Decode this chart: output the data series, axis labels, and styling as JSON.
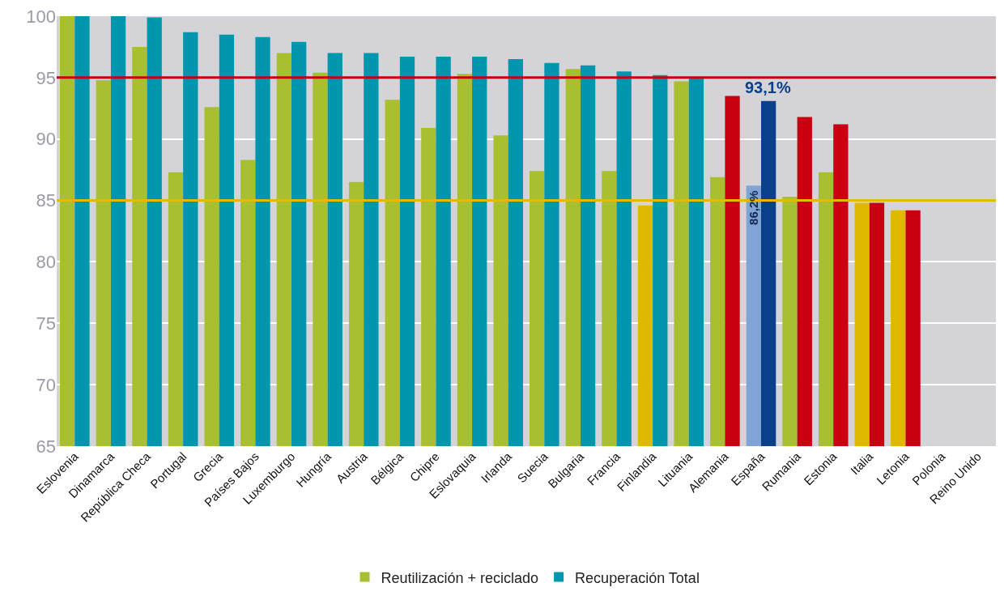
{
  "chart_data": {
    "type": "bar",
    "categories": [
      "Eslovenia",
      "Dinamarca",
      "República Checa",
      "Portugal",
      "Grecia",
      "Países Bajos",
      "Luxemburgo",
      "Hungría",
      "Austria",
      "Bélgica",
      "Chipre",
      "Eslovaquia",
      "Irlanda",
      "Suecia",
      "Bulgaria",
      "Francia",
      "Finlandia",
      "Lituania",
      "Alemania",
      "España",
      "Rumania",
      "Estonia",
      "Italia",
      "Letonia",
      "Polonia",
      "Reino Unido"
    ],
    "series": [
      {
        "name": "Reutilización + reciclado",
        "color": "#a8c030",
        "colors": [
          "#a8c030",
          "#a8c030",
          "#a8c030",
          "#a8c030",
          "#a8c030",
          "#a8c030",
          "#a8c030",
          "#a8c030",
          "#a8c030",
          "#a8c030",
          "#a8c030",
          "#a8c030",
          "#a8c030",
          "#a8c030",
          "#a8c030",
          "#a8c030",
          "#e0b800",
          "#a8c030",
          "#a8c030",
          "#80a4d6",
          "#a8c030",
          "#a8c030",
          "#e0b800",
          "#e0b800",
          null,
          null
        ],
        "values": [
          100,
          94.8,
          97.5,
          87.3,
          92.6,
          88.3,
          97.0,
          95.4,
          86.5,
          93.2,
          90.9,
          95.3,
          90.3,
          87.4,
          95.7,
          87.4,
          84.6,
          94.7,
          86.9,
          86.2,
          85.3,
          87.3,
          84.8,
          84.2,
          null,
          null
        ],
        "value_labels": [
          null,
          null,
          null,
          null,
          null,
          null,
          null,
          null,
          null,
          null,
          null,
          null,
          null,
          null,
          null,
          null,
          null,
          null,
          null,
          "86,2%",
          null,
          null,
          null,
          null,
          null,
          null
        ]
      },
      {
        "name": "Recuperación Total",
        "color": "#0096ad",
        "colors": [
          "#0096ad",
          "#0096ad",
          "#0096ad",
          "#0096ad",
          "#0096ad",
          "#0096ad",
          "#0096ad",
          "#0096ad",
          "#0096ad",
          "#0096ad",
          "#0096ad",
          "#0096ad",
          "#0096ad",
          "#0096ad",
          "#0096ad",
          "#0096ad",
          "#0096ad",
          "#0096ad",
          "#c8000f",
          "#0a3f8c",
          "#c8000f",
          "#c8000f",
          "#c8000f",
          "#c8000f",
          null,
          null
        ],
        "values": [
          100,
          100,
          99.9,
          98.7,
          98.5,
          98.3,
          97.9,
          97.0,
          97.0,
          96.7,
          96.7,
          96.7,
          96.5,
          96.2,
          96.0,
          95.5,
          95.2,
          95.0,
          93.5,
          93.1,
          91.8,
          91.2,
          84.8,
          84.2,
          null,
          null
        ],
        "value_labels": [
          null,
          null,
          null,
          null,
          null,
          null,
          null,
          null,
          null,
          null,
          null,
          null,
          null,
          null,
          null,
          null,
          null,
          null,
          null,
          "93,1%",
          null,
          null,
          null,
          null,
          null,
          null
        ]
      }
    ],
    "ylim": [
      65,
      100
    ],
    "yticks": [
      65,
      70,
      75,
      80,
      85,
      90,
      95,
      100
    ],
    "grid": "y",
    "legend": "bottom",
    "ref_lines": [
      {
        "axis": "y",
        "value": 95,
        "color": "#c8000f"
      },
      {
        "axis": "y",
        "value": 85,
        "color": "#e8b800"
      }
    ]
  }
}
